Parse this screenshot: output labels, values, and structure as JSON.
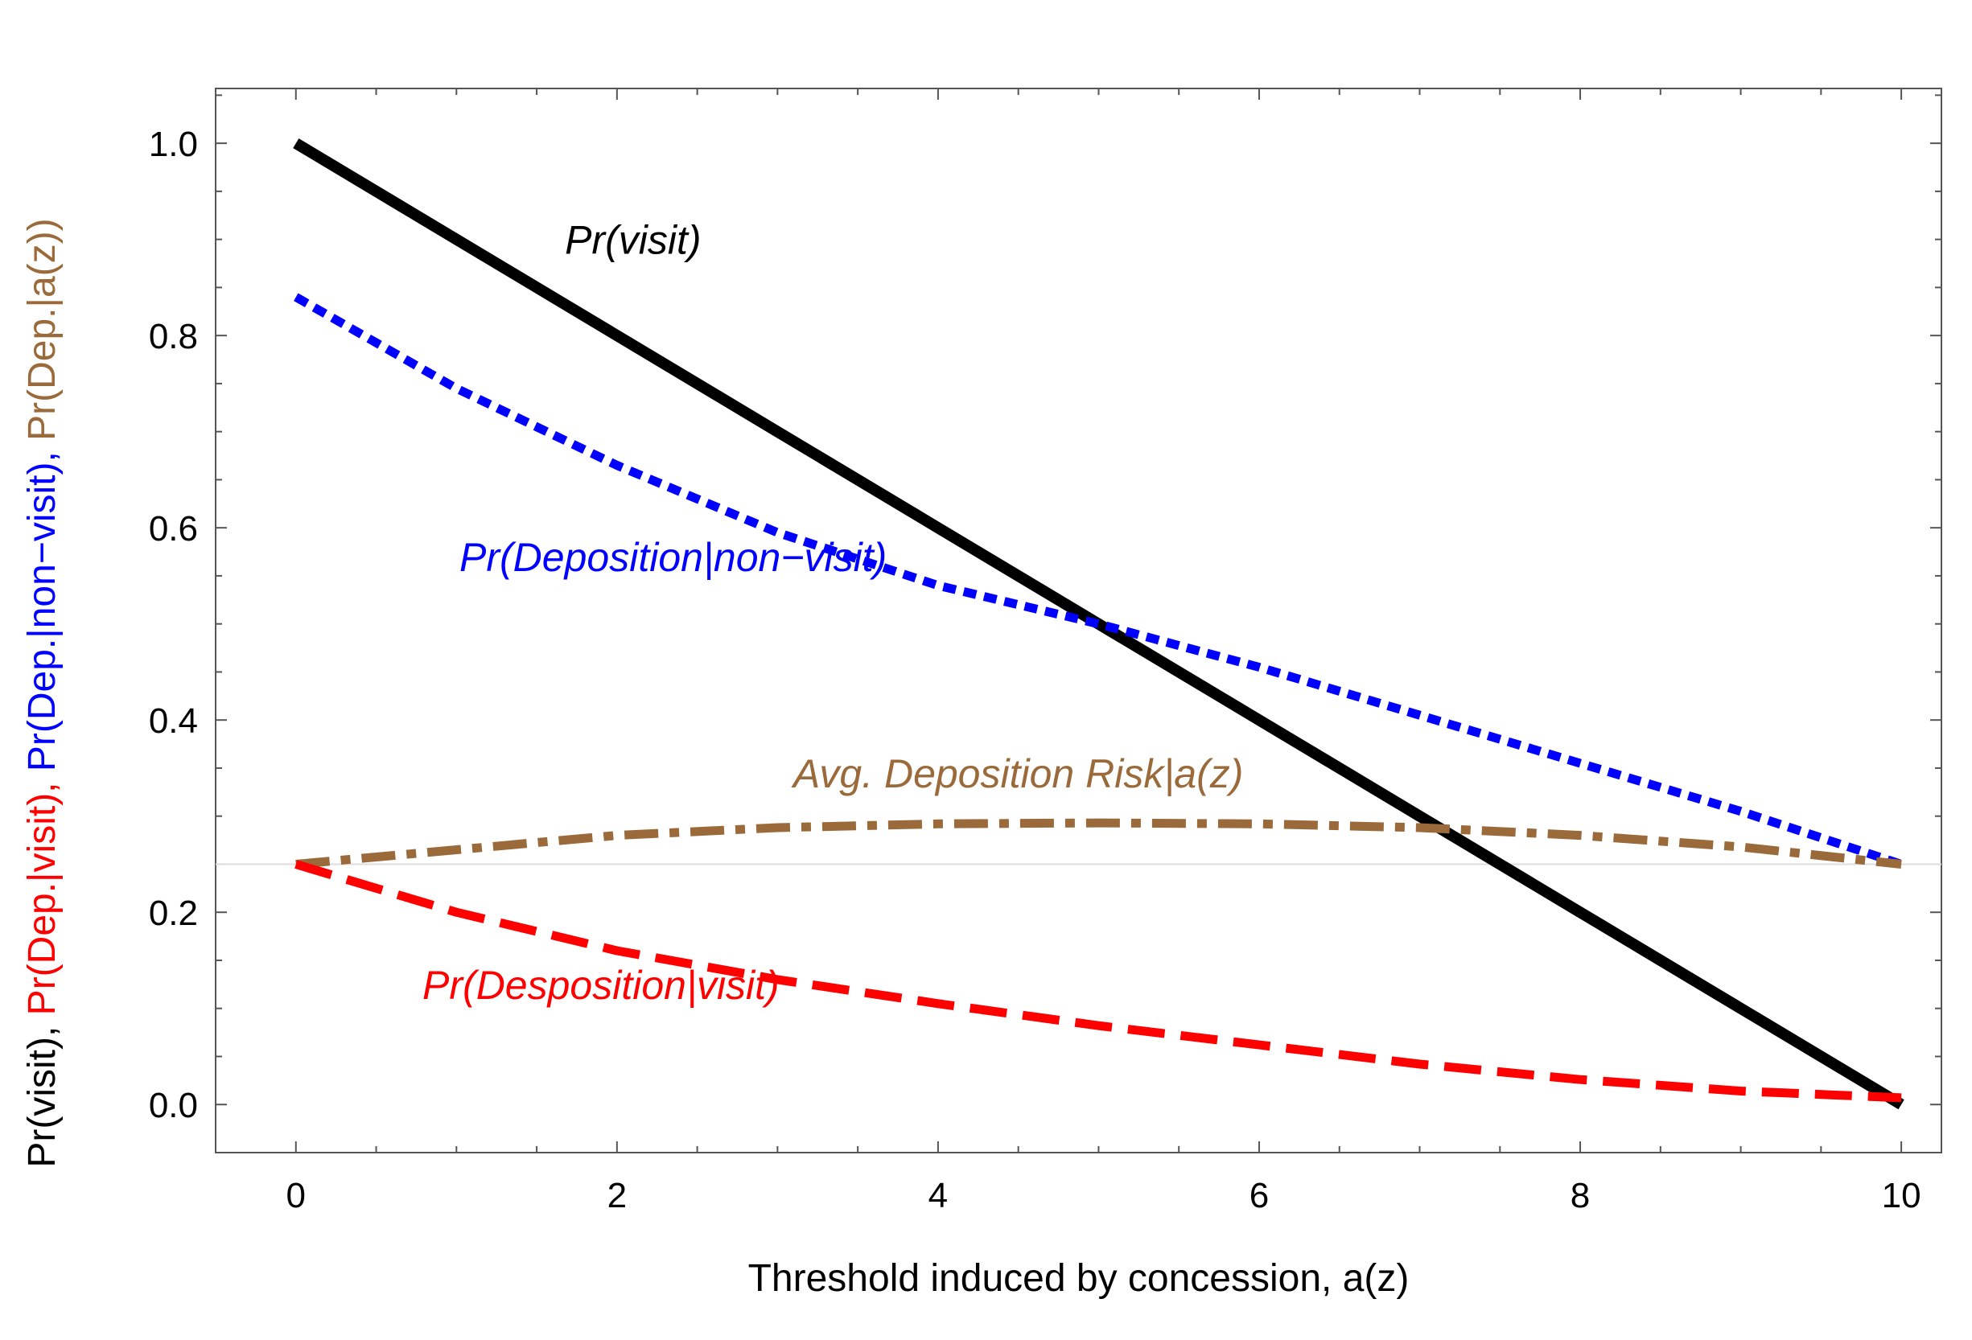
{
  "chart_data": {
    "type": "line",
    "xlabel": "Threshold induced by concession, a(z)",
    "ylabel_parts": [
      {
        "text": "Pr(visit), ",
        "color": "#000000"
      },
      {
        "text": "Pr(Dep.|visit), ",
        "color": "#ff0000"
      },
      {
        "text": "Pr(Dep.|non−visit), ",
        "color": "#0000ff"
      },
      {
        "text": "Pr(Dep.|a(z))",
        "color": "#9b6a3a"
      }
    ],
    "xlim": [
      -0.5,
      10.25
    ],
    "ylim": [
      -0.05,
      1.057
    ],
    "x_ticks": [
      0,
      2,
      4,
      6,
      8,
      10
    ],
    "x_tick_labels": [
      "0",
      "2",
      "4",
      "6",
      "8",
      "10"
    ],
    "y_ticks": [
      0.0,
      0.2,
      0.4,
      0.6,
      0.8,
      1.0
    ],
    "y_tick_labels": [
      "0.0",
      "0.2",
      "0.4",
      "0.6",
      "0.8",
      "1.0"
    ],
    "reference_line": {
      "y": 0.25,
      "color": "#dddddd"
    },
    "grid": false,
    "x": [
      0,
      1,
      2,
      3,
      4,
      5,
      6,
      7,
      8,
      9,
      10
    ],
    "series": [
      {
        "color": "#000000",
        "style": "solid",
        "values": [
          1.0,
          0.9,
          0.8,
          0.7,
          0.6,
          0.5,
          0.4,
          0.3,
          0.2,
          0.1,
          0.0
        ]
      },
      {
        "color": "#0000ff",
        "style": "dotted",
        "values": [
          0.84,
          0.745,
          0.665,
          0.595,
          0.54,
          0.5,
          0.455,
          0.405,
          0.355,
          0.305,
          0.25
        ]
      },
      {
        "color": "#9b6a3a",
        "style": "dashdot",
        "values": [
          0.25,
          0.265,
          0.28,
          0.288,
          0.292,
          0.293,
          0.292,
          0.288,
          0.28,
          0.268,
          0.25
        ]
      },
      {
        "color": "#ff0000",
        "style": "dashed",
        "values": [
          0.25,
          0.2,
          0.16,
          0.13,
          0.105,
          0.082,
          0.062,
          0.042,
          0.026,
          0.014,
          0.007
        ]
      }
    ],
    "annotations": [
      {
        "text": "Pr(visit)",
        "color": "#000000",
        "x": 2.1,
        "y": 0.885
      },
      {
        "text": "Pr(Deposition|non−visit)",
        "color": "#0000ff",
        "x": 2.35,
        "y": 0.555
      },
      {
        "text": "Avg. Deposition Risk|a(z)",
        "color": "#9b6a3a",
        "x": 4.5,
        "y": 0.33
      },
      {
        "text": "Pr(Desposition|visit)",
        "color": "#ff0000",
        "x": 1.9,
        "y": 0.11
      }
    ]
  }
}
